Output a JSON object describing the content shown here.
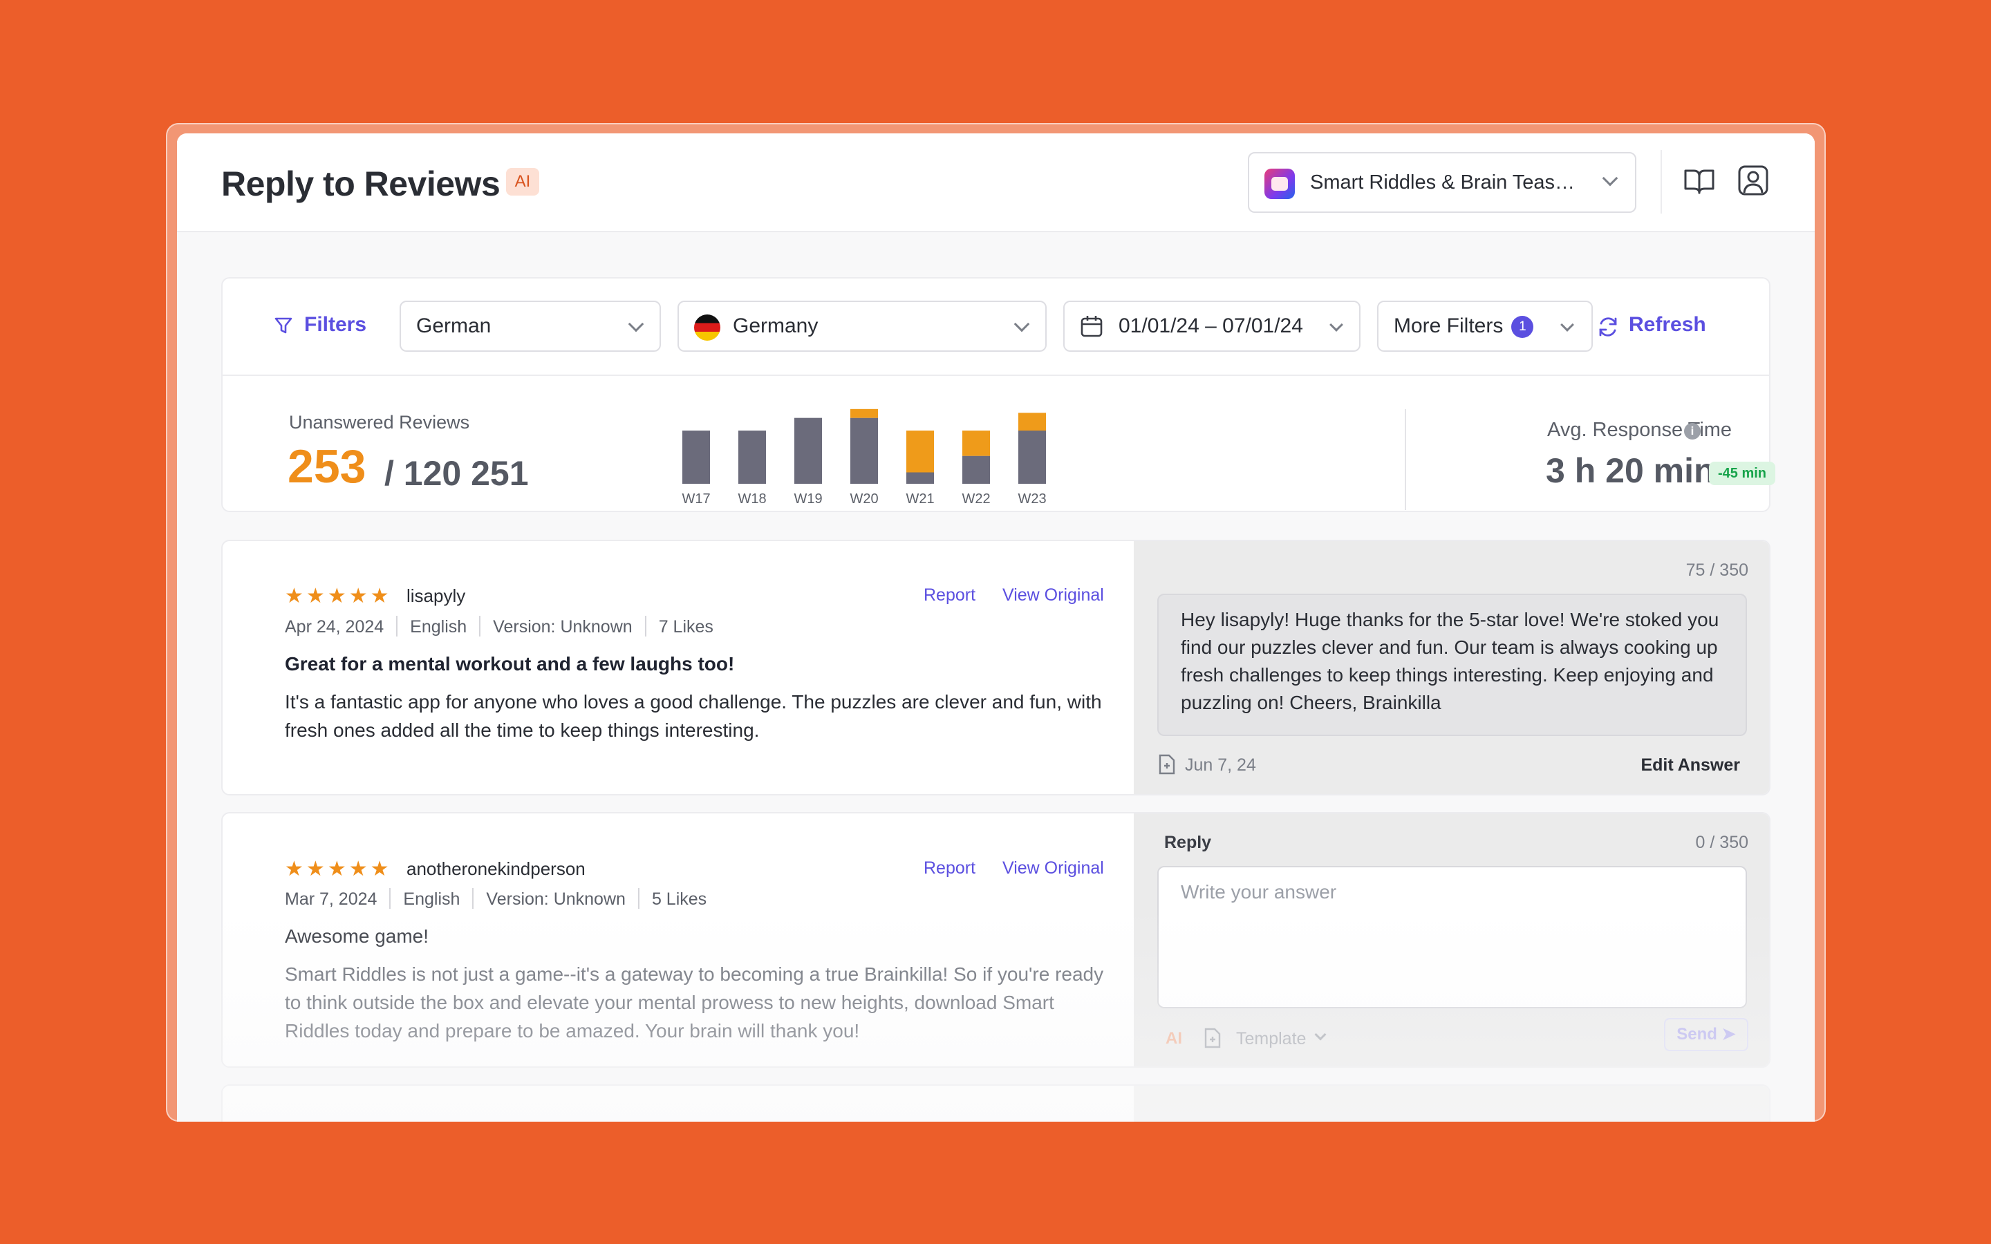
{
  "header": {
    "title": "Reply to Reviews",
    "ai_badge": "AI",
    "app_name": "Smart Riddles & Brain Teas…",
    "icons": [
      "book-icon",
      "user-icon",
      "chevron-down-icon"
    ]
  },
  "filters": {
    "filters_label": "Filters",
    "language": "German",
    "country": "Germany",
    "date_range": "01/01/24 – 07/01/24",
    "more_filters": "More Filters",
    "more_filters_count": "1",
    "refresh_label": "Refresh"
  },
  "stats": {
    "unanswered_label": "Unanswered Reviews",
    "unanswered_count": "253",
    "total_reviews": "/ 120 251",
    "avg_label": "Avg. Response Time",
    "avg_value": "3 h 20 min",
    "avg_delta": "-45 min",
    "info_glyph": "i"
  },
  "chart_data": {
    "type": "bar",
    "stacked": true,
    "categories": [
      "W17",
      "W18",
      "W19",
      "W20",
      "W21",
      "W22",
      "W23"
    ],
    "series": [
      {
        "values": [
          42,
          42,
          52,
          52,
          9,
          22,
          42
        ],
        "color": "#6b6b7b"
      },
      {
        "values": [
          0,
          0,
          0,
          7,
          33,
          20,
          14
        ],
        "color": "#ef9b1a"
      }
    ],
    "ylim": [
      0,
      60
    ],
    "grid": false
  },
  "reviews": [
    {
      "rating": 5,
      "author": "lisapyly",
      "date": "Apr 24, 2024",
      "language": "English",
      "version": "Version: Unknown",
      "likes": "7 Likes",
      "title": "Great for a mental workout and a few laughs too!",
      "body": "It's a fantastic app for anyone who loves a good challenge. The puzzles are clever and fun, with fresh ones added all the time to keep things interesting.",
      "report_label": "Report",
      "view_original_label": "View Original",
      "answer": {
        "counter": "75 / 350",
        "text": "Hey lisapyly! Huge thanks for the 5-star love! We're stoked you find our puzzles clever and fun. Our team is always cooking up fresh challenges to keep things interesting. Keep enjoying and puzzling on! Cheers, Brainkilla",
        "date": "Jun 7, 24",
        "edit_label": "Edit Answer"
      }
    },
    {
      "rating": 5,
      "author": "anotheronekindperson",
      "date": "Mar 7, 2024",
      "language": "English",
      "version": "Version: Unknown",
      "likes": "5 Likes",
      "title": "Awesome game!",
      "body": "Smart Riddles is not just a game--it's a gateway to becoming a true Brainkilla! So if you're ready to think outside the box and elevate your mental prowess to new heights, download Smart Riddles today and prepare to be amazed. Your brain will thank you!",
      "report_label": "Report",
      "view_original_label": "View Original",
      "reply": {
        "label": "Reply",
        "counter": "0 / 350",
        "placeholder": "Write your answer",
        "ai_label": "AI",
        "template_label": "Template",
        "send_label": "Send"
      }
    }
  ]
}
